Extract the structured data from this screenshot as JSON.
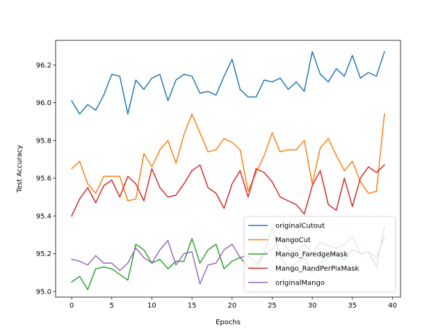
{
  "chart_data": {
    "type": "line",
    "xlabel": "Epochs",
    "ylabel": "Test Accuracy",
    "xlim": [
      -2,
      41
    ],
    "ylim": [
      94.97,
      96.33
    ],
    "xticks": [
      0,
      5,
      10,
      15,
      20,
      25,
      30,
      35,
      40
    ],
    "yticks": [
      95.0,
      95.2,
      95.4,
      95.6,
      95.8,
      96.0,
      96.2
    ],
    "ytick_labels": [
      "95.0",
      "95.2",
      "95.4",
      "95.6",
      "95.8",
      "96.0",
      "96.2"
    ],
    "grid": false,
    "legend_position": "lower-right",
    "x": [
      0,
      1,
      2,
      3,
      4,
      5,
      6,
      7,
      8,
      9,
      10,
      11,
      12,
      13,
      14,
      15,
      16,
      17,
      18,
      19,
      20,
      21,
      22,
      23,
      24,
      25,
      26,
      27,
      28,
      29,
      30,
      31,
      32,
      33,
      34,
      35,
      36,
      37,
      38,
      39
    ],
    "series": [
      {
        "name": "originalCutout",
        "color": "#1f77b4",
        "values": [
          96.01,
          95.94,
          95.99,
          95.96,
          96.04,
          96.15,
          96.14,
          95.94,
          96.12,
          96.07,
          96.13,
          96.15,
          96.01,
          96.12,
          96.15,
          96.14,
          96.05,
          96.06,
          96.04,
          96.14,
          96.23,
          96.07,
          96.03,
          96.03,
          96.12,
          96.11,
          96.13,
          96.07,
          96.11,
          96.06,
          96.27,
          96.15,
          96.11,
          96.18,
          96.14,
          96.25,
          96.13,
          96.16,
          96.14,
          96.27
        ]
      },
      {
        "name": "MangoCut",
        "color": "#ff7f0e",
        "values": [
          95.65,
          95.69,
          95.57,
          95.52,
          95.61,
          95.61,
          95.61,
          95.48,
          95.49,
          95.73,
          95.66,
          95.75,
          95.8,
          95.68,
          95.83,
          95.94,
          95.84,
          95.74,
          95.75,
          95.81,
          95.79,
          95.75,
          95.53,
          95.63,
          95.72,
          95.84,
          95.74,
          95.75,
          95.75,
          95.8,
          95.57,
          95.76,
          95.81,
          95.72,
          95.64,
          95.69,
          95.58,
          95.52,
          95.53,
          95.94
        ]
      },
      {
        "name": "Mango_FaredgeMask",
        "color": "#2ca02c",
        "values": [
          95.05,
          95.08,
          95.01,
          95.12,
          95.13,
          95.12,
          95.09,
          95.06,
          95.25,
          95.22,
          95.15,
          95.17,
          95.12,
          95.16,
          95.16,
          95.28,
          95.15,
          95.22,
          95.25,
          95.12,
          95.16,
          95.18,
          95.13,
          95.12,
          95.2,
          95.34,
          95.19,
          95.12,
          95.15,
          95.18,
          95.1,
          95.15,
          95.18,
          95.2,
          95.17,
          95.22,
          95.2,
          95.21,
          95.13,
          95.34
        ]
      },
      {
        "name": "Mango_RandPerPixMask",
        "color": "#d62728",
        "values": [
          95.4,
          95.49,
          95.55,
          95.47,
          95.56,
          95.59,
          95.5,
          95.61,
          95.57,
          95.48,
          95.65,
          95.55,
          95.5,
          95.51,
          95.57,
          95.64,
          95.67,
          95.55,
          95.52,
          95.44,
          95.57,
          95.64,
          95.5,
          95.65,
          95.63,
          95.58,
          95.5,
          95.48,
          95.46,
          95.41,
          95.56,
          95.64,
          95.46,
          95.43,
          95.6,
          95.45,
          95.6,
          95.66,
          95.63,
          95.67
        ]
      },
      {
        "name": "originalMango",
        "color": "#9467bd",
        "values": [
          95.17,
          95.16,
          95.14,
          95.19,
          95.15,
          95.15,
          95.11,
          95.15,
          95.23,
          95.18,
          95.15,
          95.22,
          95.27,
          95.14,
          95.2,
          95.21,
          95.04,
          95.14,
          95.15,
          95.22,
          95.25,
          95.18,
          95.19,
          95.15,
          95.2,
          95.22,
          95.28,
          95.22,
          95.21,
          95.25,
          95.2,
          95.26,
          95.24,
          95.23,
          95.25,
          95.29,
          95.2,
          95.21,
          95.18,
          95.29
        ]
      }
    ]
  }
}
